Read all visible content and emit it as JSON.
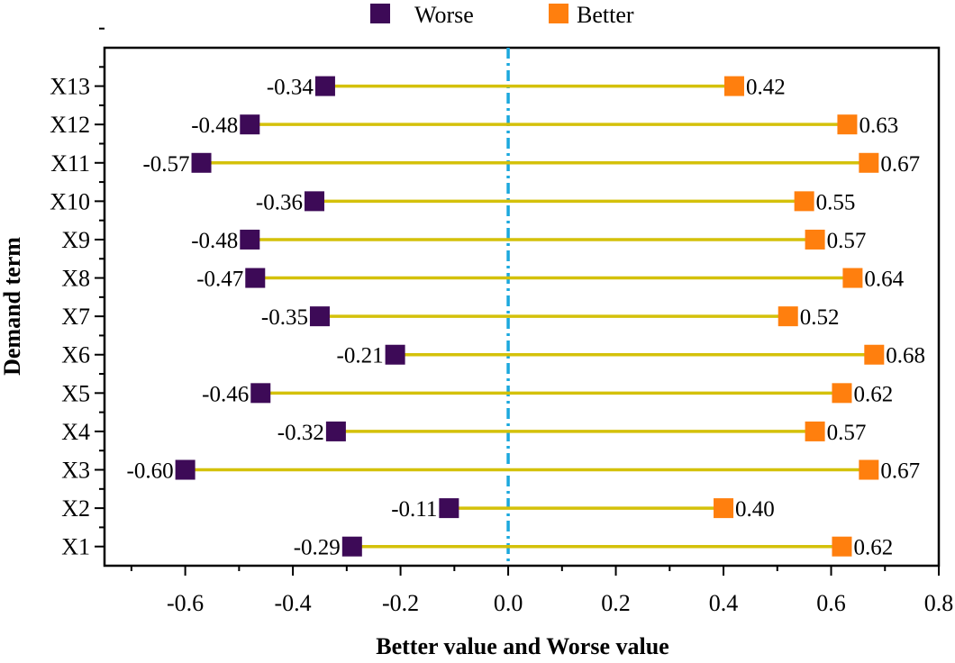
{
  "chart_data": {
    "type": "dumbbell",
    "title": "",
    "xlabel": "Better value and Worse value",
    "ylabel": "Demand term",
    "xlim": [
      -0.75,
      0.8
    ],
    "xticks": [
      "-0.6",
      "-0.4",
      "-0.2",
      "0.0",
      "0.2",
      "0.4",
      "0.6",
      "0.8"
    ],
    "xtick_values": [
      -0.6,
      -0.4,
      -0.2,
      0.0,
      0.2,
      0.4,
      0.6,
      0.8
    ],
    "categories": [
      "X1",
      "X2",
      "X3",
      "X4",
      "X5",
      "X6",
      "X7",
      "X8",
      "X9",
      "X10",
      "X11",
      "X12",
      "X13"
    ],
    "series": [
      {
        "name": "Worse",
        "color": "#3d0a57",
        "values": [
          -0.29,
          -0.11,
          -0.6,
          -0.32,
          -0.46,
          -0.21,
          -0.35,
          -0.47,
          -0.48,
          -0.36,
          -0.57,
          -0.48,
          -0.34
        ],
        "labels": [
          "-0.29",
          "-0.11",
          "-0.60",
          "-0.32",
          "-0.46",
          "-0.21",
          "-0.35",
          "-0.47",
          "-0.48",
          "-0.36",
          "-0.57",
          "-0.48",
          "-0.34"
        ]
      },
      {
        "name": "Better",
        "color": "#ff7f0e",
        "values": [
          0.62,
          0.4,
          0.67,
          0.57,
          0.62,
          0.68,
          0.52,
          0.64,
          0.57,
          0.55,
          0.67,
          0.63,
          0.42
        ],
        "labels": [
          "0.62",
          "0.40",
          "0.67",
          "0.57",
          "0.62",
          "0.68",
          "0.52",
          "0.64",
          "0.57",
          "0.55",
          "0.67",
          "0.63",
          "0.42"
        ]
      }
    ],
    "connector_color": "#d4c10a",
    "reference_line": {
      "x": 0.0,
      "style": "dash-dot",
      "color": "#1ca8dd"
    },
    "legend_placement": "top-center",
    "grid": false
  }
}
